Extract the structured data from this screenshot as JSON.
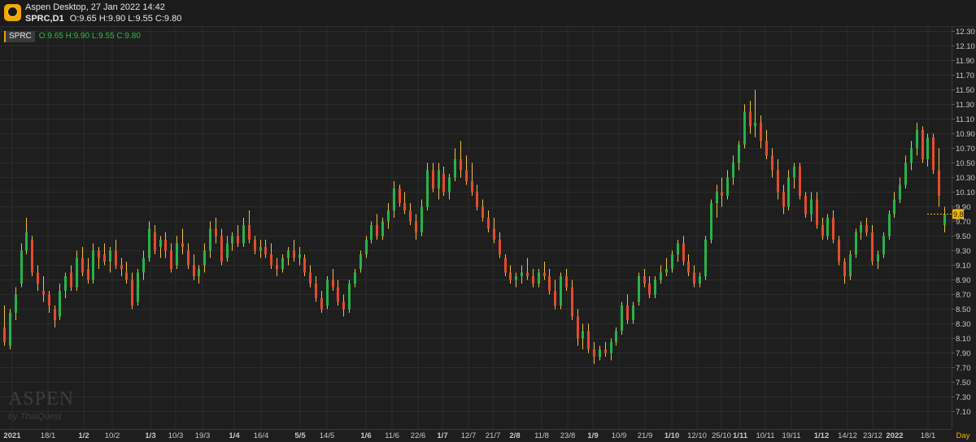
{
  "window": {
    "title": "Aspen Desktop, 27 Jan 2022 14:42",
    "symbol_tf": "SPRC,D1",
    "ohlc_summary": "O:9.65 H:9.90 L:9.55 C:9.80"
  },
  "legend": {
    "symbol": "SPRC",
    "ohlc": "O:9.65 H:9.90 L:9.55 C:9.80"
  },
  "watermark": {
    "brand": "ASPEN",
    "by": "by ThaiQuest"
  },
  "colors": {
    "up": "#26b34a",
    "down": "#e54b2e",
    "doji": "#f0c040",
    "grid": "#2c2c2c",
    "axis_text": "#c8c8c8",
    "price_marker_bg": "#f2b705"
  },
  "chart_data": {
    "type": "candlestick",
    "symbol": "SPRC",
    "timeframe": "D1",
    "ylim": [
      7.0,
      12.4
    ],
    "y_ticks": [
      "12.30",
      "12.10",
      "11.90",
      "11.70",
      "11.50",
      "11.30",
      "11.10",
      "10.90",
      "10.70",
      "10.50",
      "10.30",
      "10.10",
      "9.90",
      "9.70",
      "9.50",
      "9.30",
      "9.10",
      "8.90",
      "8.70",
      "8.50",
      "8.30",
      "8.10",
      "7.90",
      "7.70",
      "7.50",
      "7.30",
      "7.10"
    ],
    "x_ticks": [
      {
        "label": "2021",
        "bold": true
      },
      {
        "label": "18/1",
        "bold": false
      },
      {
        "label": "1/2",
        "bold": true
      },
      {
        "label": "10/2",
        "bold": false
      },
      {
        "label": "1/3",
        "bold": true
      },
      {
        "label": "10/3",
        "bold": false
      },
      {
        "label": "19/3",
        "bold": false
      },
      {
        "label": "1/4",
        "bold": true
      },
      {
        "label": "16/4",
        "bold": false
      },
      {
        "label": "5/5",
        "bold": true
      },
      {
        "label": "14/5",
        "bold": false
      },
      {
        "label": "1/6",
        "bold": true
      },
      {
        "label": "11/6",
        "bold": false
      },
      {
        "label": "22/6",
        "bold": false
      },
      {
        "label": "1/7",
        "bold": true
      },
      {
        "label": "12/7",
        "bold": false
      },
      {
        "label": "21/7",
        "bold": false
      },
      {
        "label": "2/8",
        "bold": true
      },
      {
        "label": "11/8",
        "bold": false
      },
      {
        "label": "23/8",
        "bold": false
      },
      {
        "label": "1/9",
        "bold": true
      },
      {
        "label": "10/9",
        "bold": false
      },
      {
        "label": "21/9",
        "bold": false
      },
      {
        "label": "1/10",
        "bold": true
      },
      {
        "label": "12/10",
        "bold": false
      },
      {
        "label": "25/10",
        "bold": false
      },
      {
        "label": "1/11",
        "bold": true
      },
      {
        "label": "10/11",
        "bold": false
      },
      {
        "label": "19/11",
        "bold": false
      },
      {
        "label": "1/12",
        "bold": true
      },
      {
        "label": "14/12",
        "bold": false
      },
      {
        "label": "23/12",
        "bold": false
      },
      {
        "label": "2022",
        "bold": true
      },
      {
        "label": "18/1",
        "bold": false
      }
    ],
    "period_label": "Day",
    "last_price": "9.80",
    "ohlc_start": "1/2021",
    "ohlc_end": "27/1/2022",
    "ohlc_order": [
      "open",
      "high",
      "low",
      "close"
    ],
    "ohlc": [
      [
        8.25,
        8.55,
        8.0,
        8.05
      ],
      [
        8.0,
        8.5,
        7.95,
        8.45
      ],
      [
        8.45,
        8.8,
        8.35,
        8.7
      ],
      [
        8.85,
        9.4,
        8.8,
        9.3
      ],
      [
        9.3,
        9.75,
        9.25,
        9.55
      ],
      [
        9.45,
        9.5,
        8.95,
        9.0
      ],
      [
        9.0,
        9.1,
        8.75,
        8.85
      ],
      [
        8.75,
        8.95,
        8.6,
        8.7
      ],
      [
        8.7,
        8.75,
        8.45,
        8.55
      ],
      [
        8.5,
        8.55,
        8.25,
        8.35
      ],
      [
        8.4,
        8.85,
        8.35,
        8.75
      ],
      [
        8.75,
        9.0,
        8.65,
        8.95
      ],
      [
        9.0,
        9.1,
        8.75,
        8.8
      ],
      [
        8.8,
        9.3,
        8.75,
        9.2
      ],
      [
        9.2,
        9.35,
        8.95,
        9.0
      ],
      [
        9.05,
        9.2,
        8.85,
        8.9
      ],
      [
        8.9,
        9.4,
        8.85,
        9.3
      ],
      [
        9.3,
        9.35,
        9.05,
        9.2
      ],
      [
        9.25,
        9.4,
        9.1,
        9.15
      ],
      [
        9.15,
        9.35,
        9.0,
        9.3
      ],
      [
        9.3,
        9.45,
        9.05,
        9.1
      ],
      [
        9.1,
        9.2,
        8.95,
        9.05
      ],
      [
        9.0,
        9.15,
        8.85,
        8.9
      ],
      [
        8.9,
        9.0,
        8.5,
        8.55
      ],
      [
        8.6,
        9.05,
        8.55,
        9.0
      ],
      [
        9.0,
        9.3,
        8.9,
        9.2
      ],
      [
        9.2,
        9.7,
        9.15,
        9.6
      ],
      [
        9.55,
        9.65,
        9.25,
        9.3
      ],
      [
        9.35,
        9.5,
        9.2,
        9.45
      ],
      [
        9.45,
        9.55,
        9.2,
        9.3
      ],
      [
        9.3,
        9.4,
        9.0,
        9.05
      ],
      [
        9.1,
        9.5,
        9.05,
        9.4
      ],
      [
        9.4,
        9.6,
        9.25,
        9.35
      ],
      [
        9.3,
        9.4,
        9.05,
        9.1
      ],
      [
        9.1,
        9.25,
        8.9,
        8.95
      ],
      [
        8.95,
        9.1,
        8.85,
        9.05
      ],
      [
        9.1,
        9.4,
        9.0,
        9.3
      ],
      [
        9.3,
        9.7,
        9.2,
        9.6
      ],
      [
        9.6,
        9.75,
        9.4,
        9.5
      ],
      [
        9.5,
        9.6,
        9.1,
        9.15
      ],
      [
        9.2,
        9.5,
        9.15,
        9.4
      ],
      [
        9.4,
        9.55,
        9.3,
        9.5
      ],
      [
        9.5,
        9.65,
        9.35,
        9.4
      ],
      [
        9.4,
        9.75,
        9.35,
        9.65
      ],
      [
        9.65,
        9.85,
        9.4,
        9.45
      ],
      [
        9.45,
        9.5,
        9.25,
        9.3
      ],
      [
        9.3,
        9.45,
        9.2,
        9.35
      ],
      [
        9.35,
        9.45,
        9.2,
        9.25
      ],
      [
        9.25,
        9.4,
        9.05,
        9.1
      ],
      [
        9.1,
        9.2,
        8.95,
        9.05
      ],
      [
        9.05,
        9.25,
        9.0,
        9.2
      ],
      [
        9.2,
        9.35,
        9.1,
        9.3
      ],
      [
        9.3,
        9.45,
        9.15,
        9.2
      ],
      [
        9.2,
        9.35,
        9.1,
        9.25
      ],
      [
        9.2,
        9.25,
        8.95,
        9.0
      ],
      [
        9.0,
        9.1,
        8.8,
        8.85
      ],
      [
        8.85,
        8.95,
        8.6,
        8.65
      ],
      [
        8.65,
        8.75,
        8.45,
        8.5
      ],
      [
        8.55,
        8.95,
        8.5,
        8.9
      ],
      [
        8.9,
        9.05,
        8.75,
        8.8
      ],
      [
        8.8,
        8.9,
        8.55,
        8.6
      ],
      [
        8.6,
        8.7,
        8.4,
        8.5
      ],
      [
        8.5,
        8.9,
        8.45,
        8.85
      ],
      [
        8.85,
        9.05,
        8.8,
        9.0
      ],
      [
        9.05,
        9.3,
        9.0,
        9.25
      ],
      [
        9.25,
        9.5,
        9.2,
        9.45
      ],
      [
        9.45,
        9.7,
        9.4,
        9.65
      ],
      [
        9.65,
        9.8,
        9.45,
        9.5
      ],
      [
        9.5,
        9.75,
        9.45,
        9.7
      ],
      [
        9.7,
        9.95,
        9.6,
        9.85
      ],
      [
        9.85,
        10.25,
        9.75,
        10.15
      ],
      [
        10.15,
        10.2,
        9.9,
        9.95
      ],
      [
        9.95,
        10.1,
        9.8,
        9.85
      ],
      [
        9.85,
        9.95,
        9.65,
        9.7
      ],
      [
        9.7,
        9.8,
        9.45,
        9.55
      ],
      [
        9.55,
        10.0,
        9.5,
        9.9
      ],
      [
        9.9,
        10.5,
        9.85,
        10.4
      ],
      [
        10.4,
        10.5,
        10.1,
        10.15
      ],
      [
        10.15,
        10.5,
        10.0,
        10.4
      ],
      [
        10.35,
        10.45,
        10.05,
        10.1
      ],
      [
        10.1,
        10.35,
        10.0,
        10.3
      ],
      [
        10.3,
        10.7,
        10.25,
        10.55
      ],
      [
        10.55,
        10.8,
        10.3,
        10.4
      ],
      [
        10.4,
        10.6,
        10.2,
        10.25
      ],
      [
        10.25,
        10.5,
        10.05,
        10.1
      ],
      [
        10.1,
        10.2,
        9.85,
        9.9
      ],
      [
        9.9,
        10.0,
        9.7,
        9.75
      ],
      [
        9.75,
        9.85,
        9.55,
        9.6
      ],
      [
        9.6,
        9.75,
        9.4,
        9.45
      ],
      [
        9.45,
        9.55,
        9.2,
        9.25
      ],
      [
        9.2,
        9.25,
        8.95,
        9.0
      ],
      [
        9.0,
        9.1,
        8.85,
        8.9
      ],
      [
        8.9,
        9.0,
        8.8,
        8.95
      ],
      [
        8.95,
        9.1,
        8.85,
        9.0
      ],
      [
        9.0,
        9.2,
        8.9,
        8.95
      ],
      [
        8.95,
        9.05,
        8.8,
        8.85
      ],
      [
        8.85,
        9.05,
        8.8,
        9.0
      ],
      [
        9.0,
        9.15,
        8.9,
        8.95
      ],
      [
        8.95,
        9.05,
        8.7,
        8.75
      ],
      [
        8.75,
        8.9,
        8.5,
        8.55
      ],
      [
        8.55,
        9.0,
        8.5,
        8.95
      ],
      [
        8.95,
        9.05,
        8.75,
        8.8
      ],
      [
        8.8,
        8.9,
        8.35,
        8.4
      ],
      [
        8.4,
        8.5,
        8.0,
        8.1
      ],
      [
        8.1,
        8.3,
        7.95,
        8.2
      ],
      [
        8.2,
        8.3,
        7.9,
        7.95
      ],
      [
        7.95,
        8.05,
        7.75,
        7.85
      ],
      [
        7.85,
        8.0,
        7.8,
        7.95
      ],
      [
        7.95,
        8.05,
        7.85,
        7.9
      ],
      [
        7.9,
        8.1,
        7.8,
        8.05
      ],
      [
        8.05,
        8.25,
        8.0,
        8.2
      ],
      [
        8.2,
        8.6,
        8.15,
        8.55
      ],
      [
        8.55,
        8.7,
        8.3,
        8.35
      ],
      [
        8.35,
        8.6,
        8.3,
        8.55
      ],
      [
        8.6,
        9.0,
        8.55,
        8.95
      ],
      [
        8.95,
        9.05,
        8.8,
        8.85
      ],
      [
        8.85,
        8.95,
        8.65,
        8.7
      ],
      [
        8.7,
        8.95,
        8.65,
        8.9
      ],
      [
        8.9,
        9.1,
        8.85,
        9.0
      ],
      [
        9.0,
        9.2,
        8.95,
        9.05
      ],
      [
        9.05,
        9.3,
        9.0,
        9.25
      ],
      [
        9.25,
        9.45,
        9.15,
        9.4
      ],
      [
        9.4,
        9.5,
        9.1,
        9.15
      ],
      [
        9.15,
        9.25,
        8.95,
        9.0
      ],
      [
        9.0,
        9.1,
        8.8,
        8.85
      ],
      [
        8.85,
        9.0,
        8.8,
        8.95
      ],
      [
        8.95,
        9.5,
        8.9,
        9.45
      ],
      [
        9.45,
        10.0,
        9.4,
        9.95
      ],
      [
        9.95,
        10.2,
        9.75,
        10.1
      ],
      [
        10.1,
        10.3,
        9.9,
        10.05
      ],
      [
        10.05,
        10.4,
        10.0,
        10.3
      ],
      [
        10.3,
        10.6,
        10.2,
        10.5
      ],
      [
        10.5,
        10.8,
        10.4,
        10.75
      ],
      [
        10.75,
        11.3,
        10.7,
        11.2
      ],
      [
        11.2,
        11.35,
        10.9,
        11.0
      ],
      [
        11.0,
        11.5,
        10.85,
        11.05
      ],
      [
        11.05,
        11.15,
        10.7,
        10.8
      ],
      [
        10.8,
        10.95,
        10.55,
        10.6
      ],
      [
        10.6,
        10.7,
        10.3,
        10.4
      ],
      [
        10.4,
        10.55,
        10.0,
        10.1
      ],
      [
        10.1,
        10.2,
        9.8,
        9.9
      ],
      [
        9.9,
        10.4,
        9.85,
        10.3
      ],
      [
        10.3,
        10.5,
        10.15,
        10.45
      ],
      [
        10.45,
        10.5,
        10.0,
        10.05
      ],
      [
        10.05,
        10.1,
        9.75,
        9.8
      ],
      [
        9.8,
        10.1,
        9.7,
        10.0
      ],
      [
        10.0,
        10.1,
        9.6,
        9.65
      ],
      [
        9.65,
        9.75,
        9.45,
        9.5
      ],
      [
        9.5,
        9.8,
        9.45,
        9.75
      ],
      [
        9.75,
        9.85,
        9.4,
        9.45
      ],
      [
        9.45,
        9.5,
        9.1,
        9.15
      ],
      [
        9.15,
        9.2,
        8.85,
        8.95
      ],
      [
        8.95,
        9.3,
        8.9,
        9.25
      ],
      [
        9.25,
        9.6,
        9.2,
        9.55
      ],
      [
        9.55,
        9.7,
        9.45,
        9.65
      ],
      [
        9.65,
        9.75,
        9.5,
        9.55
      ],
      [
        9.55,
        9.65,
        9.1,
        9.15
      ],
      [
        9.15,
        9.3,
        9.05,
        9.25
      ],
      [
        9.25,
        9.55,
        9.2,
        9.5
      ],
      [
        9.5,
        9.85,
        9.45,
        9.8
      ],
      [
        9.8,
        10.1,
        9.75,
        10.0
      ],
      [
        10.0,
        10.3,
        9.95,
        10.2
      ],
      [
        10.2,
        10.6,
        10.15,
        10.5
      ],
      [
        10.5,
        10.8,
        10.4,
        10.7
      ],
      [
        10.7,
        11.05,
        10.6,
        10.95
      ],
      [
        10.95,
        11.0,
        10.5,
        10.55
      ],
      [
        10.55,
        10.9,
        10.45,
        10.85
      ],
      [
        10.85,
        10.9,
        10.35,
        10.4
      ],
      [
        10.4,
        10.7,
        9.9,
        10.05
      ],
      [
        9.65,
        9.9,
        9.55,
        9.8
      ]
    ]
  }
}
